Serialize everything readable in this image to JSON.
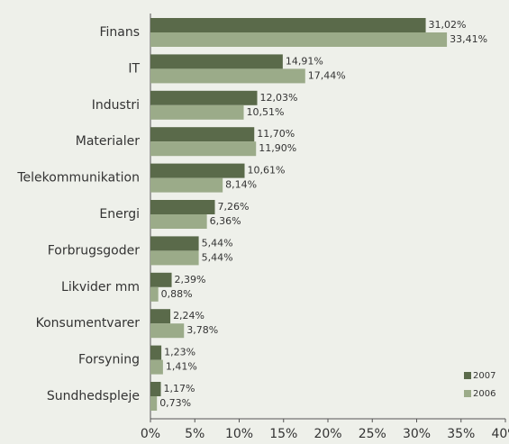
{
  "chart_data": {
    "type": "bar",
    "orientation": "horizontal",
    "categories": [
      "Finans",
      "IT",
      "Industri",
      "Materialer",
      "Telekommunikation",
      "Energi",
      "Forbrugsgoder",
      "Likvider mm",
      "Konsumentvarer",
      "Forsyning",
      "Sundhedspleje"
    ],
    "series": [
      {
        "name": "2007",
        "color": "#5a6a4a",
        "values": [
          31.02,
          14.91,
          12.03,
          11.7,
          10.61,
          7.26,
          5.44,
          2.39,
          2.24,
          1.23,
          1.17
        ],
        "value_labels": [
          "31,02%",
          "14,91%",
          "12,03%",
          "11,70%",
          "10,61%",
          "7,26%",
          "5,44%",
          "2,39%",
          "2,24%",
          "1,23%",
          "1,17%"
        ]
      },
      {
        "name": "2006",
        "color": "#9bab89",
        "values": [
          33.41,
          17.44,
          10.51,
          11.9,
          8.14,
          6.36,
          5.44,
          0.88,
          3.78,
          1.41,
          0.73
        ],
        "value_labels": [
          "33,41%",
          "17,44%",
          "10,51%",
          "11,90%",
          "8,14%",
          "6,36%",
          "5,44%",
          "0,88%",
          "3,78%",
          "1,41%",
          "0,73%"
        ]
      }
    ],
    "xlim": [
      0,
      40
    ],
    "xticks": [
      {
        "value": 0,
        "label": "0%"
      },
      {
        "value": 5,
        "label": "5%"
      },
      {
        "value": 10,
        "label": "10%"
      },
      {
        "value": 15,
        "label": "15%"
      },
      {
        "value": 20,
        "label": "20%"
      },
      {
        "value": 25,
        "label": "25%"
      },
      {
        "value": 30,
        "label": "30%"
      },
      {
        "value": 35,
        "label": "35%"
      },
      {
        "value": 40,
        "label": "40%"
      }
    ],
    "legend": "lower right"
  }
}
